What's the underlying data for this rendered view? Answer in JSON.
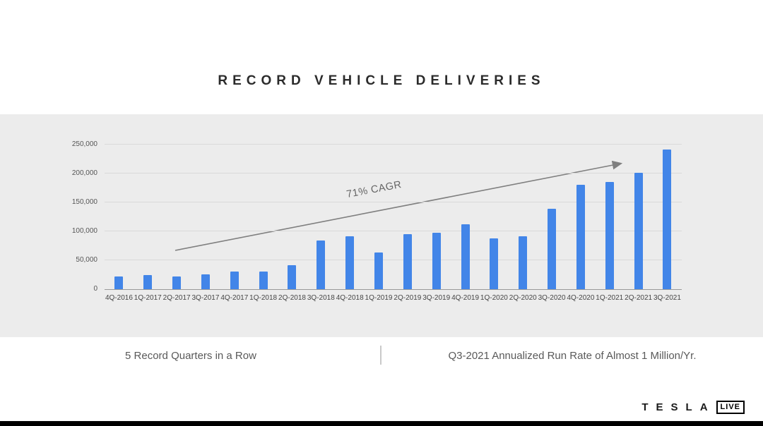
{
  "title": "RECORD VEHICLE DELIVERIES",
  "chart_data": {
    "type": "bar",
    "title": "RECORD VEHICLE DELIVERIES",
    "categories": [
      "4Q-2016",
      "1Q-2017",
      "2Q-2017",
      "3Q-2017",
      "4Q-2017",
      "1Q-2018",
      "2Q-2018",
      "3Q-2018",
      "4Q-2018",
      "1Q-2019",
      "2Q-2019",
      "3Q-2019",
      "4Q-2019",
      "1Q-2020",
      "2Q-2020",
      "3Q-2020",
      "4Q-2020",
      "1Q-2021",
      "2Q-2021",
      "3Q-2021"
    ],
    "values": [
      22000,
      25000,
      22000,
      26000,
      30000,
      30000,
      41000,
      84000,
      91000,
      63000,
      95000,
      97000,
      112000,
      88000,
      91000,
      139000,
      181000,
      185000,
      201000,
      241000
    ],
    "xlabel": "",
    "ylabel": "",
    "ylim": [
      0,
      250000
    ],
    "yticks": [
      0,
      50000,
      100000,
      150000,
      200000,
      250000
    ],
    "grid": true,
    "legend": "none",
    "bar_color": "#4285e8",
    "annotation": {
      "text": "71% CAGR"
    }
  },
  "captions": {
    "left": "5 Record Quarters in a Row",
    "right": "Q3-2021 Annualized Run Rate of Almost 1 Million/Yr."
  },
  "footer": {
    "brand": "TESLA",
    "live": "LIVE"
  },
  "colors": {
    "bar": "#4285e8",
    "band_background": "#ececec",
    "arrow": "#7f7f7f"
  }
}
